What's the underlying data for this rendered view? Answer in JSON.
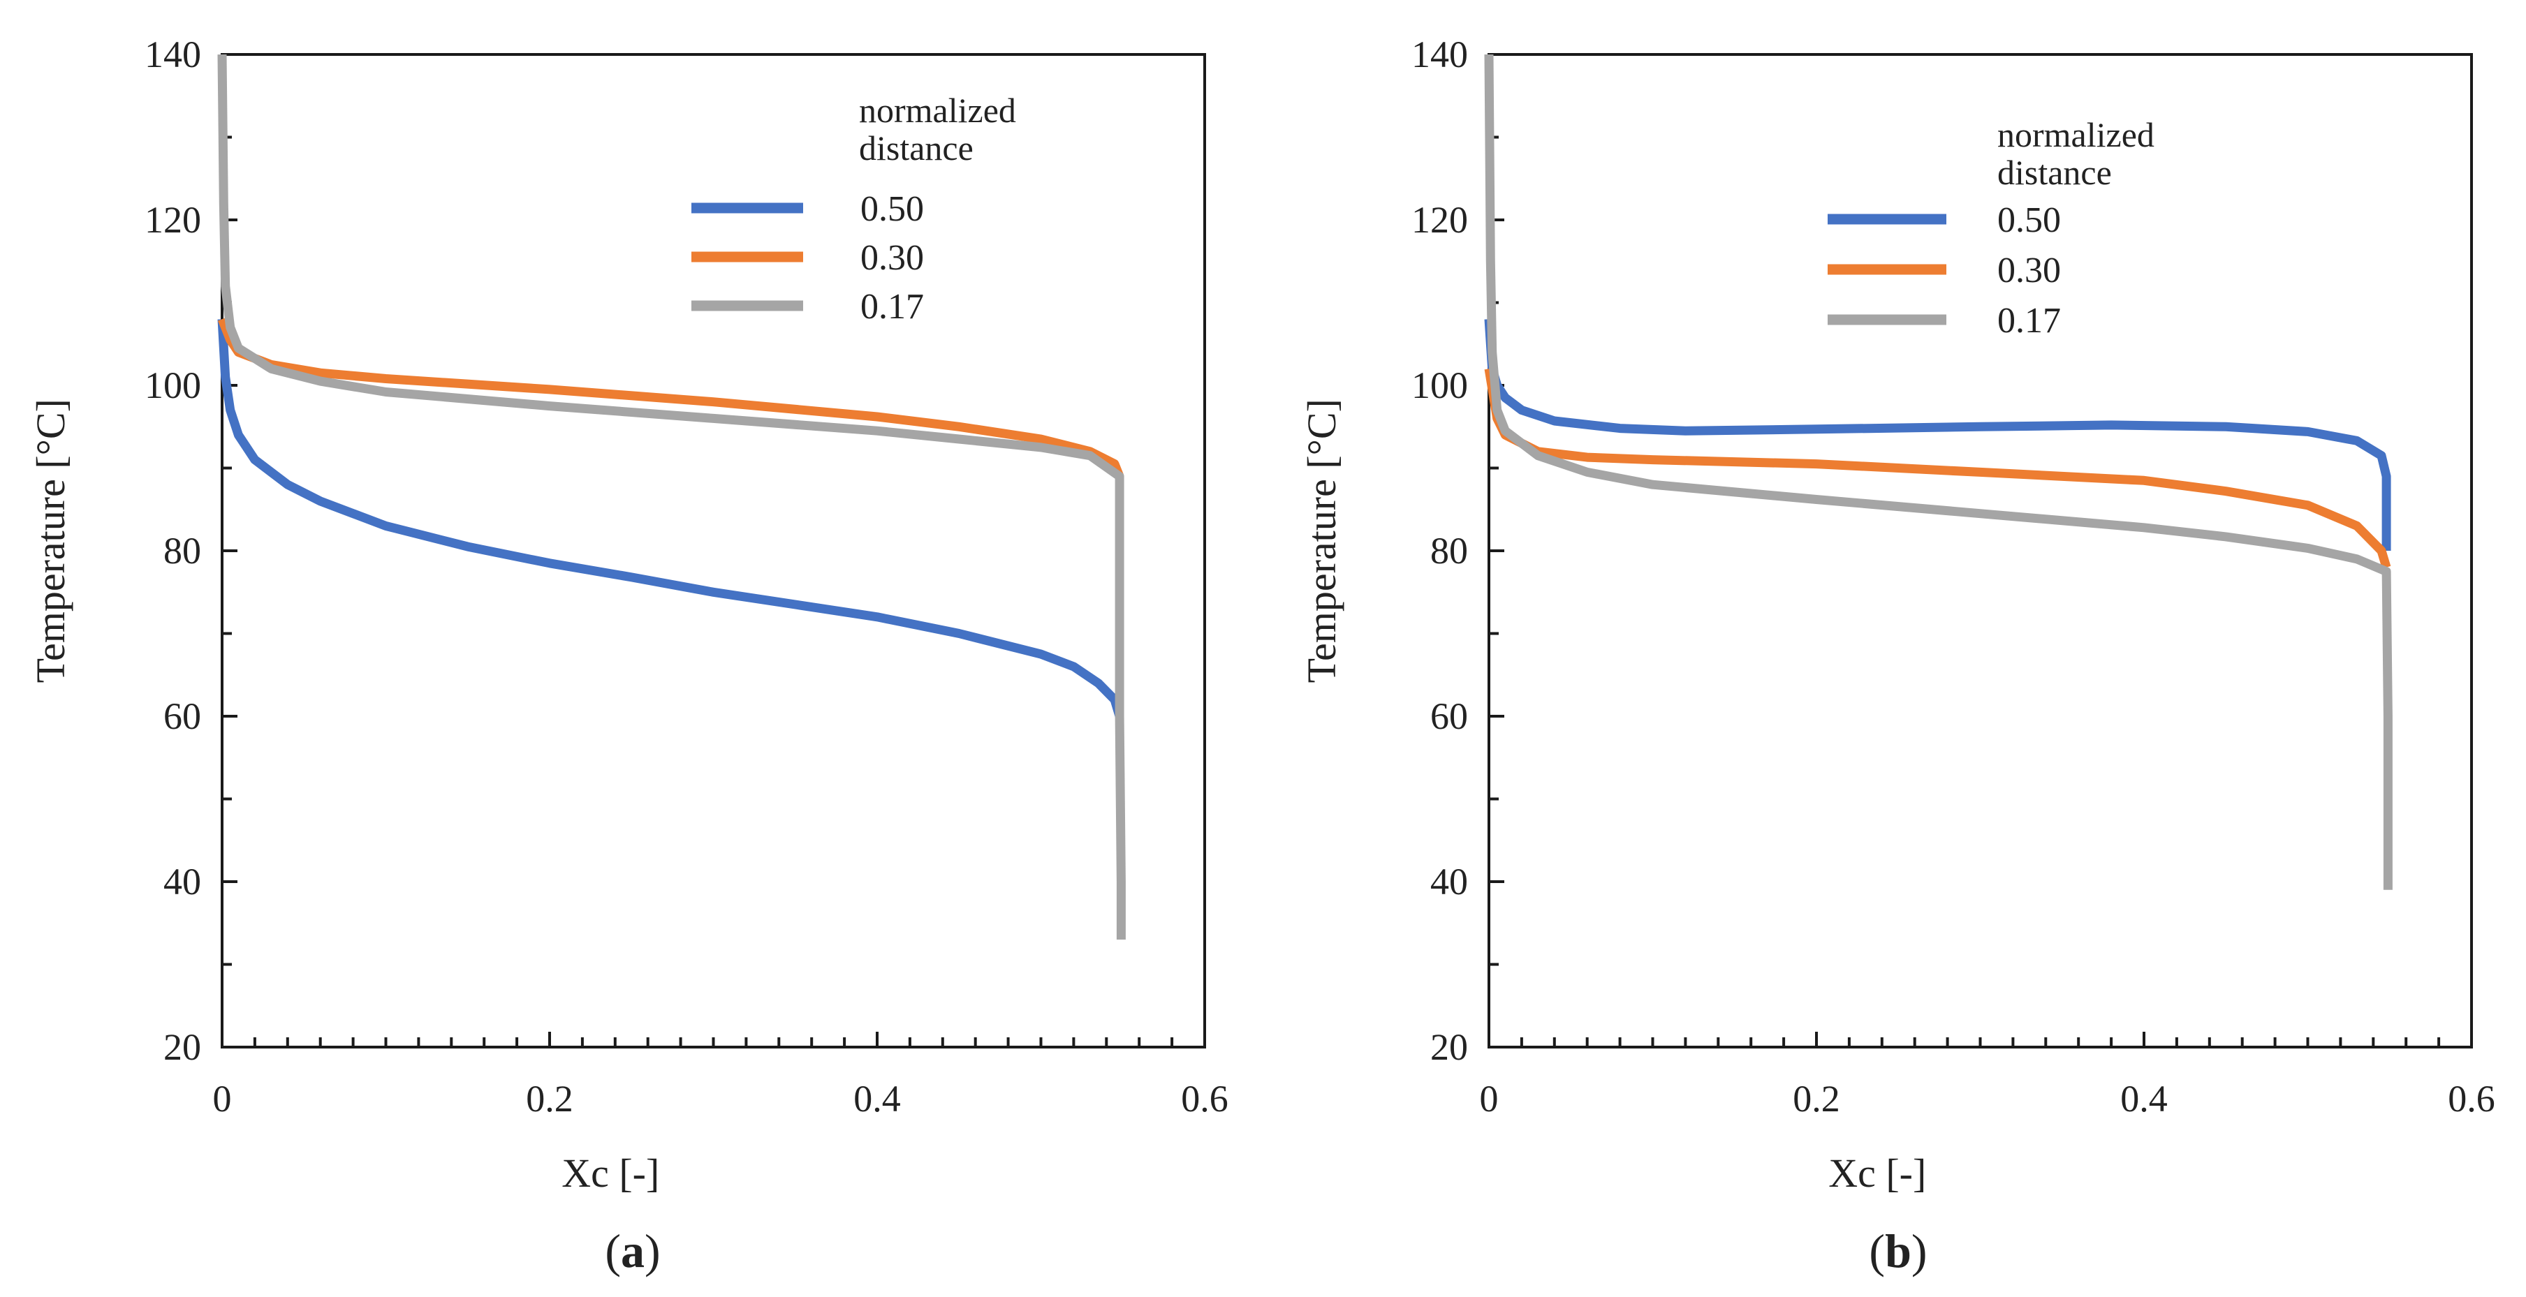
{
  "chart_data": [
    {
      "type": "line",
      "panel_label": "a",
      "xlabel": "Xc [-]",
      "ylabel": "Temperature [°C]",
      "xlim": [
        0,
        0.6
      ],
      "ylim": [
        20,
        140
      ],
      "x_ticks": [
        "0",
        "0.2",
        "0.4",
        "0.6"
      ],
      "y_ticks": [
        "20",
        "40",
        "60",
        "80",
        "100",
        "120",
        "140"
      ],
      "grid": false,
      "legend_position": "top-right",
      "legend_title": [
        "normalized",
        "distance"
      ],
      "series": [
        {
          "name": "0.50",
          "color": "#4472C4",
          "points": [
            [
              0,
              108
            ],
            [
              0.002,
              101
            ],
            [
              0.005,
              97
            ],
            [
              0.01,
              94
            ],
            [
              0.02,
              91
            ],
            [
              0.04,
              88
            ],
            [
              0.06,
              86
            ],
            [
              0.08,
              84.5
            ],
            [
              0.1,
              83
            ],
            [
              0.15,
              80.5
            ],
            [
              0.2,
              78.5
            ],
            [
              0.25,
              76.8
            ],
            [
              0.3,
              75
            ],
            [
              0.35,
              73.5
            ],
            [
              0.4,
              72
            ],
            [
              0.45,
              70
            ],
            [
              0.5,
              67.5
            ],
            [
              0.52,
              66
            ],
            [
              0.535,
              64
            ],
            [
              0.545,
              62
            ],
            [
              0.548,
              60
            ]
          ]
        },
        {
          "name": "0.30",
          "color": "#ED7D31",
          "points": [
            [
              0,
              108
            ],
            [
              0.005,
              105.5
            ],
            [
              0.01,
              104
            ],
            [
              0.03,
              102.5
            ],
            [
              0.06,
              101.5
            ],
            [
              0.1,
              100.8
            ],
            [
              0.2,
              99.5
            ],
            [
              0.3,
              98
            ],
            [
              0.4,
              96.2
            ],
            [
              0.45,
              95
            ],
            [
              0.5,
              93.5
            ],
            [
              0.53,
              92
            ],
            [
              0.545,
              90.5
            ],
            [
              0.548,
              89
            ]
          ]
        },
        {
          "name": "0.17",
          "color": "#A5A5A5",
          "points": [
            [
              0,
              140
            ],
            [
              0.001,
              122
            ],
            [
              0.002,
              112
            ],
            [
              0.005,
              107
            ],
            [
              0.01,
              104.5
            ],
            [
              0.03,
              102
            ],
            [
              0.06,
              100.5
            ],
            [
              0.1,
              99.2
            ],
            [
              0.2,
              97.5
            ],
            [
              0.3,
              96
            ],
            [
              0.4,
              94.5
            ],
            [
              0.45,
              93.5
            ],
            [
              0.5,
              92.5
            ],
            [
              0.53,
              91.5
            ],
            [
              0.548,
              89
            ],
            [
              0.548,
              60
            ],
            [
              0.549,
              40
            ],
            [
              0.549,
              33
            ]
          ]
        }
      ]
    },
    {
      "type": "line",
      "panel_label": "b",
      "xlabel": "Xc [-]",
      "ylabel": "Temperature [°C]",
      "xlim": [
        0,
        0.6
      ],
      "ylim": [
        20,
        140
      ],
      "x_ticks": [
        "0",
        "0.2",
        "0.4",
        "0.6"
      ],
      "y_ticks": [
        "20",
        "40",
        "60",
        "80",
        "100",
        "120",
        "140"
      ],
      "grid": false,
      "legend_position": "top-right",
      "legend_title": [
        "normalized",
        "distance"
      ],
      "series": [
        {
          "name": "0.50",
          "color": "#4472C4",
          "points": [
            [
              0,
              108
            ],
            [
              0.002,
              102
            ],
            [
              0.005,
              100
            ],
            [
              0.01,
              98.5
            ],
            [
              0.02,
              97
            ],
            [
              0.04,
              95.7
            ],
            [
              0.08,
              94.8
            ],
            [
              0.12,
              94.5
            ],
            [
              0.2,
              94.7
            ],
            [
              0.3,
              95
            ],
            [
              0.38,
              95.2
            ],
            [
              0.45,
              95
            ],
            [
              0.5,
              94.4
            ],
            [
              0.53,
              93.3
            ],
            [
              0.545,
              91.5
            ],
            [
              0.548,
              89
            ],
            [
              0.548,
              80
            ]
          ]
        },
        {
          "name": "0.30",
          "color": "#ED7D31",
          "points": [
            [
              0,
              102
            ],
            [
              0.005,
              96
            ],
            [
              0.01,
              94
            ],
            [
              0.03,
              92
            ],
            [
              0.06,
              91.3
            ],
            [
              0.1,
              91
            ],
            [
              0.2,
              90.5
            ],
            [
              0.3,
              89.5
            ],
            [
              0.4,
              88.5
            ],
            [
              0.45,
              87.2
            ],
            [
              0.5,
              85.5
            ],
            [
              0.53,
              83
            ],
            [
              0.545,
              80
            ],
            [
              0.548,
              78
            ]
          ]
        },
        {
          "name": "0.17",
          "color": "#A5A5A5",
          "points": [
            [
              0,
              140
            ],
            [
              0.001,
              115
            ],
            [
              0.002,
              104
            ],
            [
              0.005,
              97
            ],
            [
              0.01,
              94.5
            ],
            [
              0.03,
              91.5
            ],
            [
              0.06,
              89.5
            ],
            [
              0.1,
              88
            ],
            [
              0.2,
              86.2
            ],
            [
              0.3,
              84.5
            ],
            [
              0.4,
              82.8
            ],
            [
              0.45,
              81.7
            ],
            [
              0.5,
              80.3
            ],
            [
              0.53,
              79
            ],
            [
              0.548,
              77.5
            ],
            [
              0.549,
              60
            ],
            [
              0.549,
              45
            ],
            [
              0.549,
              39
            ]
          ]
        }
      ]
    }
  ]
}
